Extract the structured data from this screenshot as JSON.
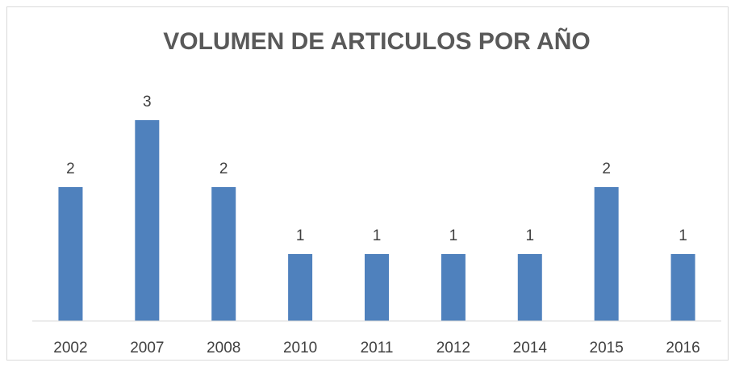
{
  "chart_data": {
    "type": "bar",
    "title": "VOLUMEN DE ARTICULOS POR AÑO",
    "categories": [
      "2002",
      "2007",
      "2008",
      "2010",
      "2011",
      "2012",
      "2014",
      "2015",
      "2016"
    ],
    "values": [
      2,
      3,
      2,
      1,
      1,
      1,
      1,
      2,
      1
    ],
    "color": "#4f81bd",
    "ylim": [
      0,
      3.5
    ],
    "data_labels": true
  }
}
